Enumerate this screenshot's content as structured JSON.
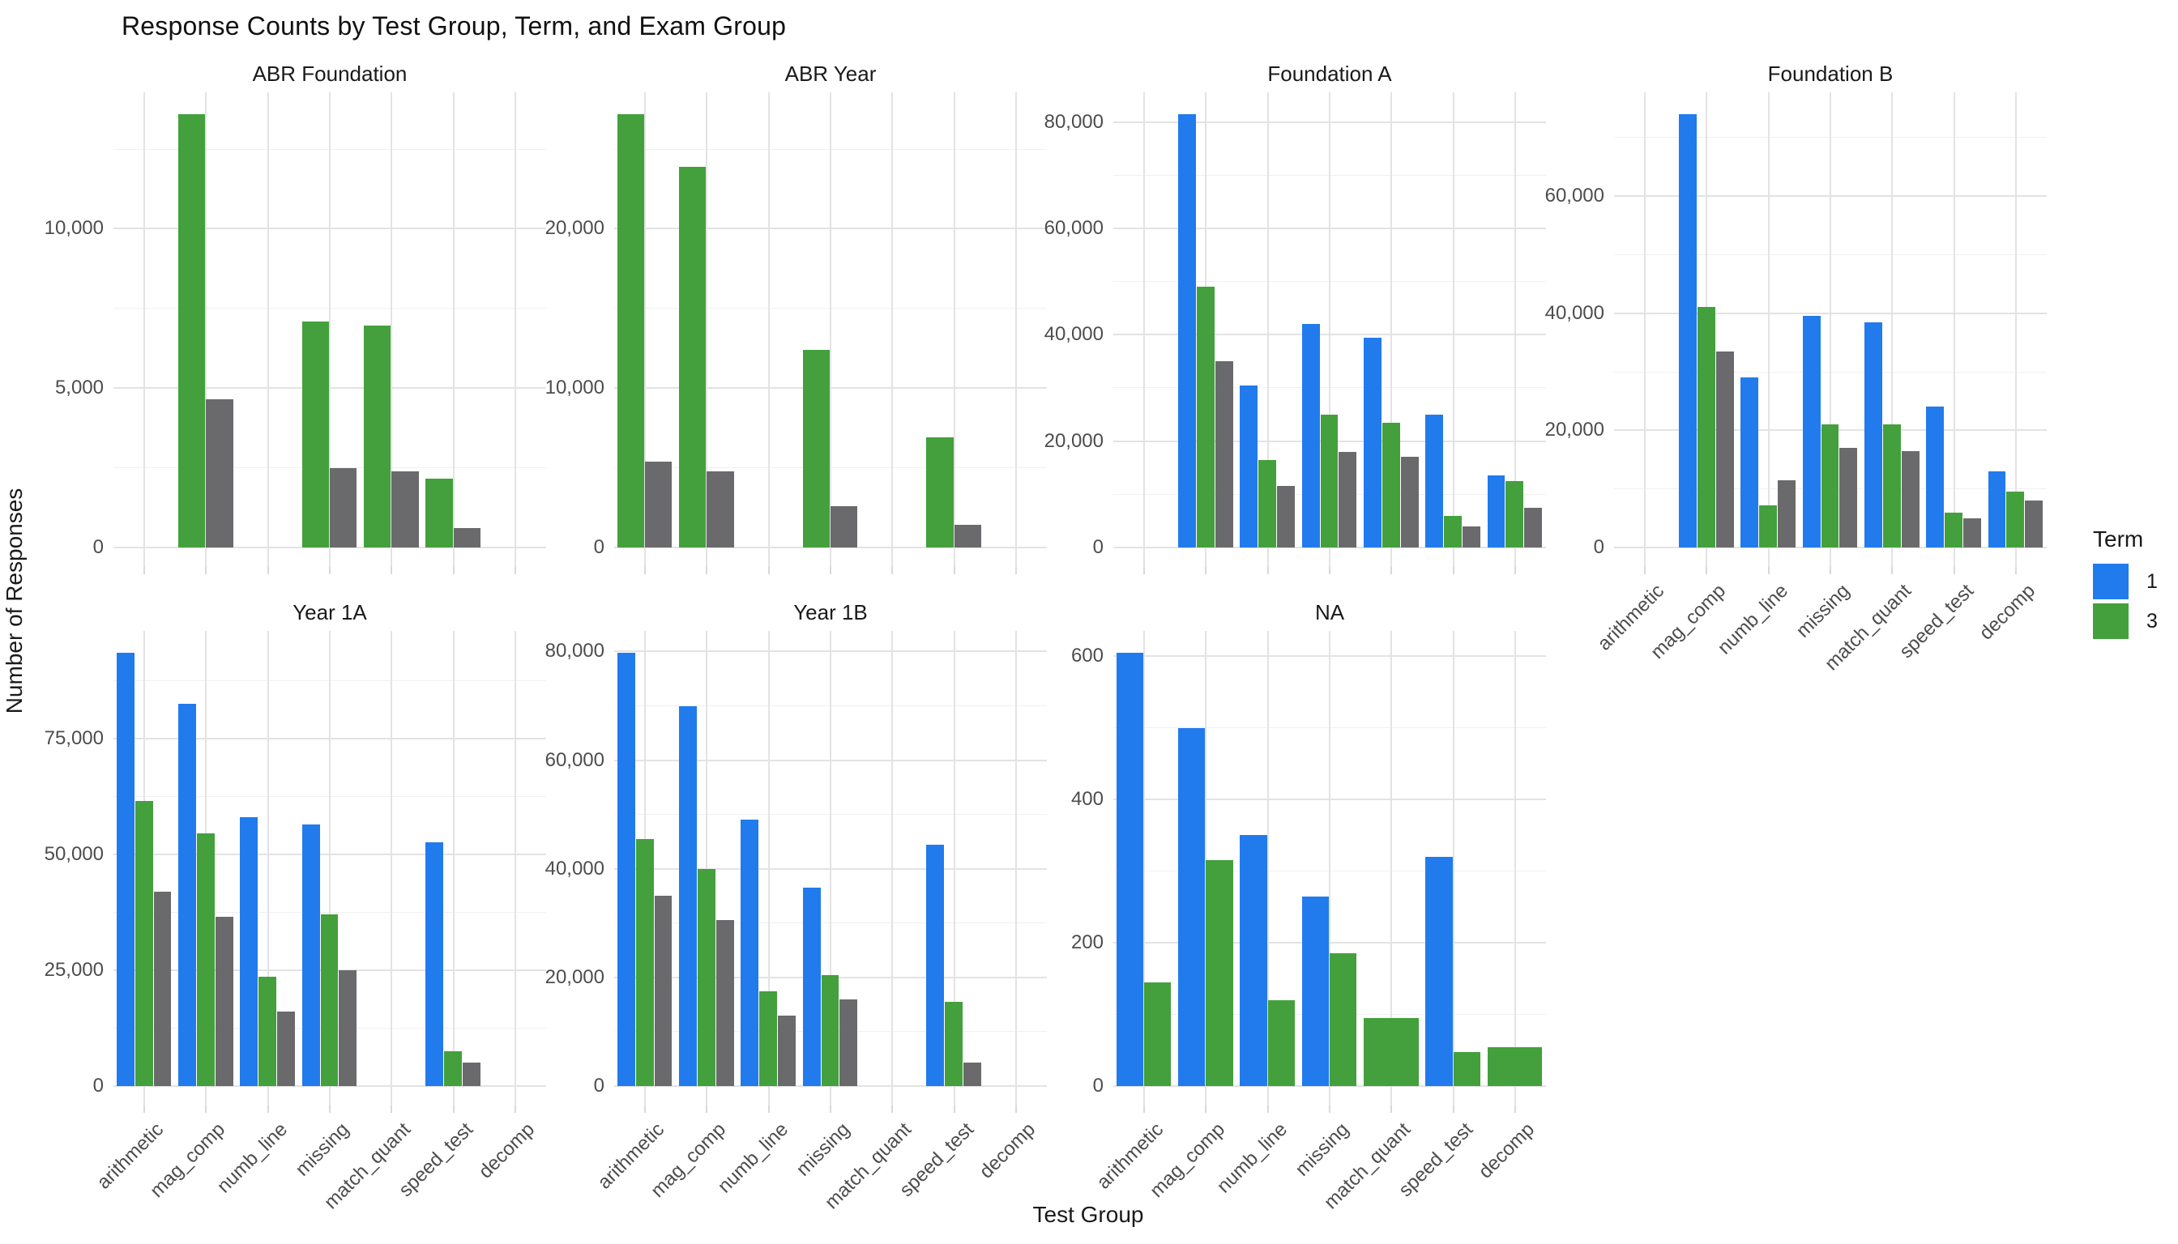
{
  "title": "Response Counts by Test Group, Term, and Exam Group",
  "axes": {
    "x_title": "Test Group",
    "y_title": "Number of Responses"
  },
  "legend": {
    "title": "Term",
    "entries": [
      {
        "label": "1",
        "term": "t1"
      },
      {
        "label": "3",
        "term": "t3"
      }
    ]
  },
  "colors": {
    "t1": "#217BED",
    "t3": "#43A03C",
    "tNA": "#6A6A6D",
    "grid_major": "#e3e3e3",
    "grid_minor": "#f0f0f0",
    "tick_text": "#4d4d4d",
    "title_text": "#1a1a1a"
  },
  "chart_data": {
    "type": "bar",
    "title": "Response Counts by Test Group, Term, and Exam Group",
    "xlabel": "Test Group",
    "ylabel": "Number of Responses",
    "facet_variable": "Exam Group",
    "series_variable": "Term",
    "grid": "on",
    "legend_position": "right",
    "categories": [
      "arithmetic",
      "mag_comp",
      "numb_line",
      "missing",
      "match_quant",
      "speed_test",
      "decomp"
    ],
    "series_order": [
      "t1",
      "t3",
      "tNA"
    ],
    "series_names": {
      "t1": "Term 1",
      "t3": "Term 3",
      "tNA": "Term NA (not in legend, gray)"
    },
    "facets": [
      {
        "name": "ABR Foundation",
        "row": 0,
        "col": 0,
        "show_x_labels": false,
        "yticks": [
          {
            "v": 0,
            "label": "0"
          },
          {
            "v": 5000,
            "label": "5,000"
          },
          {
            "v": 10000,
            "label": "10,000"
          }
        ],
        "series": {
          "t1": [
            null,
            null,
            null,
            null,
            null,
            null,
            null
          ],
          "t3": [
            null,
            13600,
            null,
            7100,
            6950,
            2150,
            null
          ],
          "tNA": [
            null,
            4650,
            null,
            2500,
            2400,
            600,
            null
          ]
        }
      },
      {
        "name": "ABR Year",
        "row": 0,
        "col": 1,
        "show_x_labels": false,
        "yticks": [
          {
            "v": 0,
            "label": "0"
          },
          {
            "v": 10000,
            "label": "10,000"
          },
          {
            "v": 20000,
            "label": "20,000"
          }
        ],
        "series": {
          "t1": [
            null,
            null,
            null,
            null,
            null,
            null,
            null
          ],
          "t3": [
            27200,
            23900,
            null,
            12400,
            null,
            6900,
            null
          ],
          "tNA": [
            5400,
            4800,
            null,
            2600,
            null,
            1400,
            null
          ]
        }
      },
      {
        "name": "Foundation A",
        "row": 0,
        "col": 2,
        "show_x_labels": false,
        "yticks": [
          {
            "v": 0,
            "label": "0"
          },
          {
            "v": 20000,
            "label": "20,000"
          },
          {
            "v": 40000,
            "label": "40,000"
          },
          {
            "v": 60000,
            "label": "60,000"
          },
          {
            "v": 80000,
            "label": "80,000"
          }
        ],
        "series": {
          "t1": [
            null,
            81500,
            30500,
            42000,
            39500,
            25000,
            13500
          ],
          "t3": [
            null,
            49000,
            16500,
            25000,
            23500,
            6000,
            12500
          ],
          "tNA": [
            null,
            35000,
            11500,
            18000,
            17000,
            4000,
            7500
          ]
        }
      },
      {
        "name": "Foundation B",
        "row": 0,
        "col": 3,
        "show_x_labels": true,
        "yticks": [
          {
            "v": 0,
            "label": "0"
          },
          {
            "v": 20000,
            "label": "20,000"
          },
          {
            "v": 40000,
            "label": "40,000"
          },
          {
            "v": 60000,
            "label": "60,000"
          }
        ],
        "series": {
          "t1": [
            null,
            74000,
            29000,
            39500,
            38500,
            24000,
            13000
          ],
          "t3": [
            null,
            41000,
            7200,
            21000,
            21000,
            6000,
            9500
          ],
          "tNA": [
            null,
            33500,
            11500,
            17000,
            16500,
            5000,
            8000
          ]
        }
      },
      {
        "name": "Year 1A",
        "row": 1,
        "col": 0,
        "show_x_labels": true,
        "yticks": [
          {
            "v": 0,
            "label": "0"
          },
          {
            "v": 25000,
            "label": "25,000"
          },
          {
            "v": 50000,
            "label": "50,000"
          },
          {
            "v": 75000,
            "label": "75,000"
          }
        ],
        "series": {
          "t1": [
            93500,
            82500,
            58000,
            56500,
            null,
            52500,
            null
          ],
          "t3": [
            61500,
            54500,
            23500,
            37000,
            null,
            7600,
            null
          ],
          "tNA": [
            42000,
            36500,
            16000,
            25000,
            null,
            5100,
            null
          ]
        }
      },
      {
        "name": "Year 1B",
        "row": 1,
        "col": 1,
        "show_x_labels": true,
        "yticks": [
          {
            "v": 0,
            "label": "0"
          },
          {
            "v": 20000,
            "label": "20,000"
          },
          {
            "v": 40000,
            "label": "40,000"
          },
          {
            "v": 60000,
            "label": "60,000"
          },
          {
            "v": 80000,
            "label": "80,000"
          }
        ],
        "series": {
          "t1": [
            79800,
            70000,
            49000,
            36500,
            null,
            44500,
            null
          ],
          "t3": [
            45500,
            40000,
            17500,
            20500,
            null,
            15500,
            null
          ],
          "tNA": [
            35000,
            30500,
            13000,
            16000,
            null,
            4400,
            null
          ]
        }
      },
      {
        "name": "NA",
        "row": 1,
        "col": 2,
        "show_x_labels": true,
        "yticks": [
          {
            "v": 0,
            "label": "0"
          },
          {
            "v": 200,
            "label": "200"
          },
          {
            "v": 400,
            "label": "400"
          },
          {
            "v": 600,
            "label": "600"
          }
        ],
        "series": {
          "t1": [
            605,
            500,
            350,
            265,
            null,
            320,
            null
          ],
          "t3": [
            145,
            315,
            120,
            185,
            95,
            48,
            54
          ],
          "tNA": [
            null,
            null,
            null,
            null,
            null,
            null,
            null
          ]
        }
      }
    ]
  }
}
